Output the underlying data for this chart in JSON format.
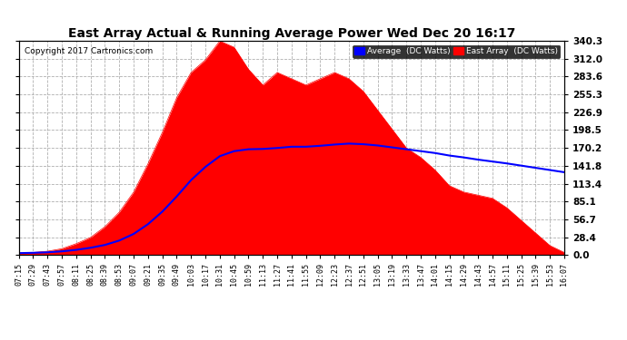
{
  "title": "East Array Actual & Running Average Power Wed Dec 20 16:17",
  "copyright": "Copyright 2017 Cartronics.com",
  "y_max": 340.3,
  "y_ticks": [
    0.0,
    28.4,
    56.7,
    85.1,
    113.4,
    141.8,
    170.2,
    198.5,
    226.9,
    255.3,
    283.6,
    312.0,
    340.3
  ],
  "legend_avg_label": "Average  (DC Watts)",
  "legend_east_label": "East Array  (DC Watts)",
  "avg_color": "#0000ff",
  "east_color": "#ff0000",
  "bg_color": "#ffffff",
  "grid_color": "#b0b0b0",
  "x_ticks": [
    "07:15",
    "07:29",
    "07:43",
    "07:57",
    "08:11",
    "08:25",
    "08:39",
    "08:53",
    "09:07",
    "09:21",
    "09:35",
    "09:49",
    "10:03",
    "10:17",
    "10:31",
    "10:45",
    "10:59",
    "11:13",
    "11:27",
    "11:41",
    "11:55",
    "12:09",
    "12:23",
    "12:37",
    "12:51",
    "13:05",
    "13:19",
    "13:33",
    "13:47",
    "14:01",
    "14:15",
    "14:29",
    "14:43",
    "14:57",
    "15:11",
    "15:25",
    "15:39",
    "15:53",
    "16:07"
  ],
  "east_values": [
    3,
    4,
    6,
    10,
    18,
    28,
    45,
    68,
    100,
    145,
    195,
    250,
    290,
    310,
    340,
    330,
    295,
    270,
    290,
    280,
    270,
    280,
    290,
    280,
    260,
    230,
    200,
    170,
    155,
    135,
    110,
    100,
    95,
    90,
    75,
    55,
    35,
    15,
    4
  ],
  "avg_values": [
    3.0,
    3.5,
    4.3,
    5.8,
    8.2,
    11.5,
    16.0,
    23.0,
    33.5,
    49.0,
    69.0,
    93.0,
    119.0,
    140.0,
    157.0,
    165.0,
    168.0,
    168.5,
    170.0,
    172.0,
    172.0,
    173.5,
    175.5,
    177.0,
    176.0,
    174.0,
    171.0,
    168.0,
    165.0,
    162.0,
    158.0,
    155.0,
    151.5,
    148.5,
    145.5,
    142.0,
    138.5,
    135.0,
    131.5
  ]
}
